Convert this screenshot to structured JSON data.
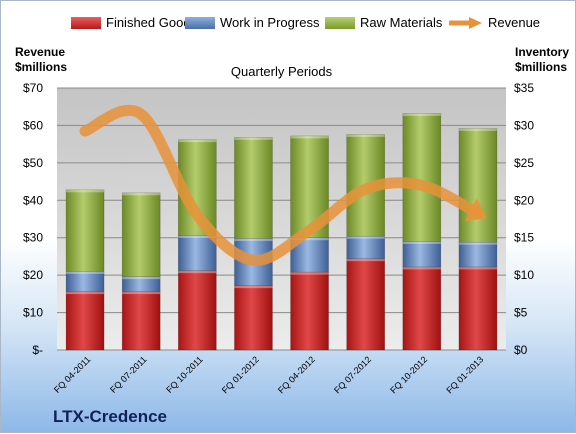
{
  "company": "LTX-Credence",
  "chart_data": {
    "type": "bar",
    "stacked": true,
    "title": "Quarterly Periods",
    "left_axis_title": [
      "Revenue",
      "$millions"
    ],
    "right_axis_title": [
      "Inventory",
      "$millions"
    ],
    "categories": [
      "FQ 04-2011",
      "FQ 07-2011",
      "FQ 10-2011",
      "FQ 01-2012",
      "FQ 04-2012",
      "FQ 07-2012",
      "FQ 10-2012",
      "FQ 01-2013"
    ],
    "series": [
      {
        "name": "Finished Goods",
        "color": "#c62828",
        "values": [
          7.8,
          7.8,
          10.6,
          8.6,
          10.4,
          12.2,
          11.1,
          11.1
        ]
      },
      {
        "name": "Work in Progress",
        "color": "#5a7fb5",
        "values": [
          2.7,
          2.0,
          4.7,
          6.3,
          4.6,
          3.0,
          3.4,
          3.3
        ]
      },
      {
        "name": "Raw Materials",
        "color": "#8caa3c",
        "values": [
          10.9,
          11.2,
          12.8,
          13.5,
          13.6,
          13.6,
          17.1,
          15.2
        ]
      }
    ],
    "line_series": {
      "name": "Revenue",
      "color": "#e8923a",
      "values": [
        58.5,
        63,
        36,
        24,
        32,
        43,
        44,
        36.5
      ]
    },
    "left_ylim": [
      0,
      70
    ],
    "left_ticks": [
      "$-",
      "$10",
      "$20",
      "$30",
      "$40",
      "$50",
      "$60",
      "$70"
    ],
    "right_ylim": [
      0,
      35
    ],
    "right_ticks": [
      "$0",
      "$5",
      "$10",
      "$15",
      "$20",
      "$25",
      "$30",
      "$35"
    ],
    "grid": true,
    "legend_position": "top"
  }
}
